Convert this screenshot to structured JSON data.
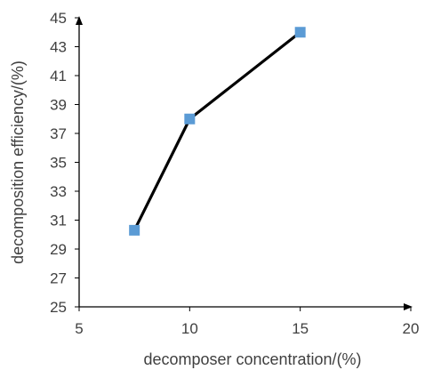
{
  "chart_data": {
    "type": "line",
    "xlabel": "decomposer concentration/(%)",
    "ylabel": "decomposition efficiency/(%)",
    "xlim": [
      5,
      20
    ],
    "ylim": [
      25,
      45
    ],
    "xticks": [
      5,
      10,
      15,
      20
    ],
    "yticks": [
      25,
      27,
      29,
      31,
      33,
      35,
      37,
      39,
      41,
      43,
      45
    ],
    "grid": false,
    "series": [
      {
        "x": [
          7.5,
          10,
          15
        ],
        "y": [
          30.3,
          38.0,
          44.0
        ],
        "line_color": "#000000",
        "marker": "square",
        "marker_color": "#5b9bd5"
      }
    ]
  }
}
